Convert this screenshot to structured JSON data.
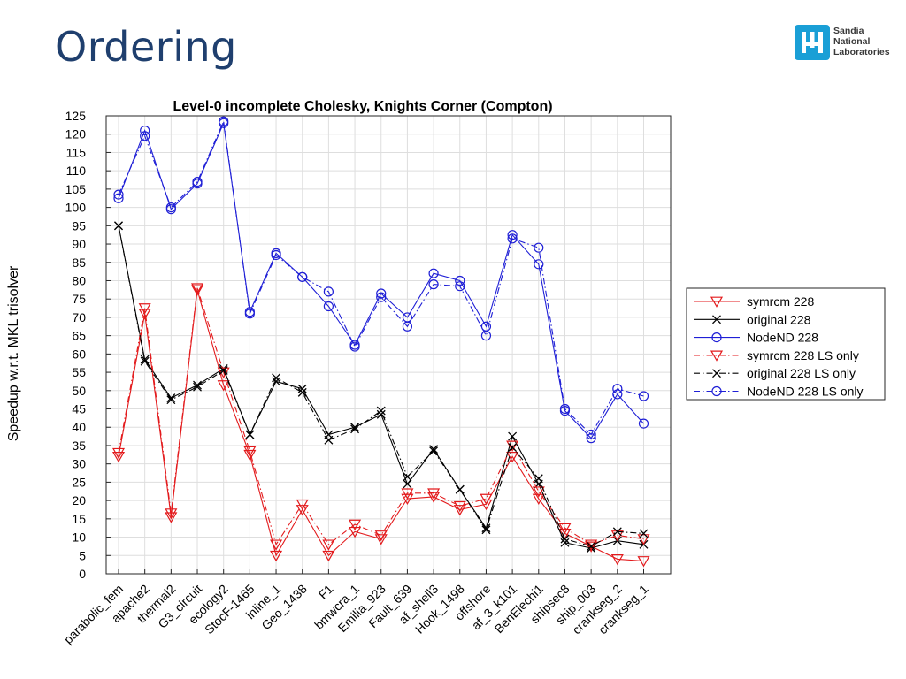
{
  "slide": {
    "title": "Ordering",
    "logo": {
      "lines": [
        "Sandia",
        "National",
        "Laboratories"
      ]
    }
  },
  "colors": {
    "title": "#1f3f6e",
    "symrcm": "#e31a1c",
    "original": "#000000",
    "nodend": "#1f1fd6",
    "logo": "#1a9fd6"
  },
  "chart_data": {
    "type": "line",
    "title": "Level-0 incomplete Cholesky, Knights Corner (Compton)",
    "ylabel": "Speedup w.r.t. MKL trisolver",
    "xlabel": "",
    "ylim": [
      0,
      125
    ],
    "yticks": [
      0,
      5,
      10,
      15,
      20,
      25,
      30,
      35,
      40,
      45,
      50,
      55,
      60,
      65,
      70,
      75,
      80,
      85,
      90,
      95,
      100,
      105,
      110,
      115,
      120,
      125
    ],
    "grid": true,
    "legend_position": "right",
    "categories": [
      "parabolic_fem",
      "apache2",
      "thermal2",
      "G3_circuit",
      "ecology2",
      "StocF-1465",
      "inline_1",
      "Geo_1438",
      "F1",
      "bmwcra_1",
      "Emilia_923",
      "Fault_639",
      "af_shell3",
      "Hook_1498",
      "offshore",
      "af_3_k101",
      "BenElechi1",
      "shipsec8",
      "ship_003",
      "crankseg_2",
      "crankseg_1"
    ],
    "series": [
      {
        "name": "symrcm 228",
        "color": "#e31a1c",
        "dash": "solid",
        "marker": "triangle-down",
        "values": [
          32,
          71,
          15.5,
          77.5,
          51.5,
          32.5,
          5,
          17.5,
          5,
          11.5,
          9.5,
          20.5,
          21,
          17.5,
          19,
          32,
          20.5,
          11,
          7.5,
          4,
          3.5
        ]
      },
      {
        "name": "original 228",
        "color": "#000000",
        "dash": "solid",
        "marker": "x",
        "values": [
          95,
          58.5,
          48,
          51.5,
          56,
          38,
          52.5,
          50.5,
          38,
          40,
          43.5,
          24.5,
          34,
          23,
          12.5,
          37.5,
          24.5,
          8.5,
          7,
          9,
          8
        ]
      },
      {
        "name": "NodeND 228",
        "color": "#1f1fd6",
        "dash": "solid",
        "marker": "circle",
        "values": [
          102.5,
          121,
          99.5,
          106.5,
          123,
          71.5,
          87.5,
          81,
          73,
          62.5,
          76.5,
          70,
          82,
          80,
          67.5,
          92.5,
          84.5,
          44.5,
          37,
          49,
          41
        ]
      },
      {
        "name": "symrcm 228 LS only",
        "color": "#e31a1c",
        "dash": "dashdot",
        "marker": "triangle-down",
        "values": [
          33,
          72.5,
          16.5,
          78,
          55,
          33.5,
          8,
          19,
          8,
          13.5,
          10.5,
          22,
          22,
          18.5,
          20.5,
          35,
          22.5,
          12.5,
          8,
          10.5,
          9.5
        ]
      },
      {
        "name": "original 228 LS only",
        "color": "#000000",
        "dash": "dashdot",
        "marker": "x",
        "values": [
          95,
          58,
          47.5,
          51,
          55.5,
          38,
          53.5,
          49.5,
          36.5,
          39.5,
          44.5,
          26.5,
          33.5,
          23,
          12,
          34.5,
          26,
          9.5,
          7.5,
          11.5,
          11
        ]
      },
      {
        "name": "NodeND 228 LS only",
        "color": "#1f1fd6",
        "dash": "dashdot",
        "marker": "circle",
        "values": [
          103.5,
          119.5,
          100,
          107,
          123.5,
          71,
          87,
          81,
          77,
          62,
          75.5,
          67.5,
          79,
          78.5,
          65,
          91.5,
          89,
          45,
          38,
          50.5,
          48.5
        ]
      }
    ]
  }
}
